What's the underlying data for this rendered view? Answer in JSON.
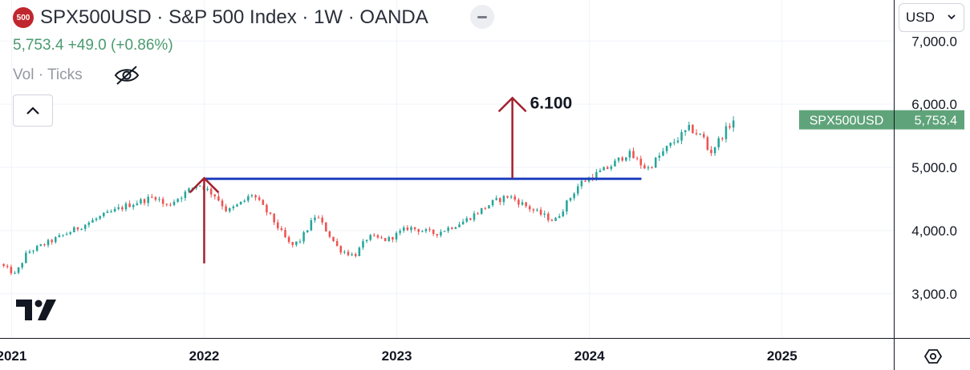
{
  "header": {
    "logo_text": "500",
    "title": "SPX500USD · S&P 500 Index · 1W · OANDA",
    "quote": "5,753.4  +49.0  (+0.86%)",
    "vol_label": "Vol · Ticks",
    "currency": "USD"
  },
  "colors": {
    "up": "#26a69a",
    "down": "#ef5350",
    "hline": "#1f3fbf",
    "arrow": "#a3212f",
    "price_label_bg": "#5fa37a",
    "quote_text": "#4a9b6f",
    "logo_bg": "#c0262d"
  },
  "icons": [
    "eye-crossed-icon",
    "chevron-up-icon",
    "chevron-down-icon",
    "minus-icon",
    "settings-hex-icon",
    "tradingview-logo-icon"
  ],
  "chart_data": {
    "type": "candlestick",
    "timeframe": "1W",
    "symbol": "SPX500USD",
    "ylim": [
      2300,
      7650
    ],
    "yticks": [
      3000,
      4000,
      5000,
      6000,
      7000
    ],
    "ytick_labels": [
      "3,000.0",
      "4,000.0",
      "5,000.0",
      "6,000.0",
      "7,000.0"
    ],
    "xlim": [
      2020.94,
      2025.58
    ],
    "xticks": [
      2021,
      2022,
      2023,
      2024,
      2025
    ],
    "xtick_labels": [
      "2021",
      "2022",
      "2023",
      "2024",
      "2025"
    ],
    "grid": true,
    "anchors": [
      [
        2020.94,
        3470
      ],
      [
        2021.02,
        3300
      ],
      [
        2021.08,
        3650
      ],
      [
        2021.25,
        3900
      ],
      [
        2021.45,
        4200
      ],
      [
        2021.6,
        4400
      ],
      [
        2021.75,
        4540
      ],
      [
        2021.8,
        4380
      ],
      [
        2021.97,
        4740
      ],
      [
        2022.06,
        4550
      ],
      [
        2022.12,
        4300
      ],
      [
        2022.2,
        4450
      ],
      [
        2022.25,
        4580
      ],
      [
        2022.35,
        4200
      ],
      [
        2022.45,
        3750
      ],
      [
        2022.5,
        3850
      ],
      [
        2022.58,
        4250
      ],
      [
        2022.7,
        3700
      ],
      [
        2022.78,
        3600
      ],
      [
        2022.85,
        3900
      ],
      [
        2022.95,
        3850
      ],
      [
        2023.06,
        4050
      ],
      [
        2023.2,
        3950
      ],
      [
        2023.35,
        4150
      ],
      [
        2023.5,
        4450
      ],
      [
        2023.58,
        4550
      ],
      [
        2023.72,
        4300
      ],
      [
        2023.82,
        4150
      ],
      [
        2023.95,
        4750
      ],
      [
        2024.1,
        5000
      ],
      [
        2024.2,
        5230
      ],
      [
        2024.3,
        4970
      ],
      [
        2024.4,
        5300
      ],
      [
        2024.52,
        5620
      ],
      [
        2024.6,
        5450
      ],
      [
        2024.62,
        5200
      ],
      [
        2024.72,
        5640
      ],
      [
        2024.75,
        5753.4
      ]
    ],
    "last_price": 5753.4,
    "last_price_label": "SPX500USD",
    "last_price_text": "5,753.4",
    "annotations": {
      "horizontal_line": {
        "price": 4820,
        "from": 2022.0,
        "to": 2024.27
      },
      "vertical_arrow_down": {
        "x": 2022.0,
        "from": 4830,
        "to": 3480
      },
      "vertical_arrow_up": {
        "x": 2023.6,
        "from": 4830,
        "to": 6100
      },
      "target_label": "6.100"
    }
  }
}
